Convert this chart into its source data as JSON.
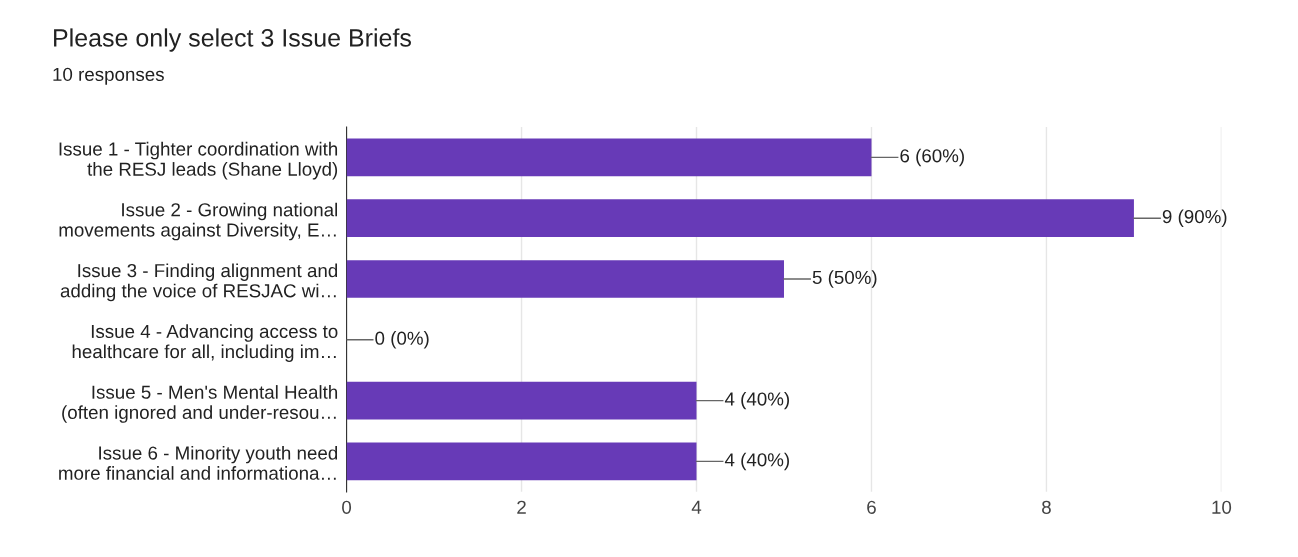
{
  "chart_data": {
    "type": "bar",
    "orientation": "horizontal",
    "title": "Please only select 3 Issue Briefs",
    "subtitle": "10 responses",
    "categories": [
      "Issue 1 - Tighter coordination with\nthe RESJ leads (Shane Lloyd)",
      "Issue 2 - Growing national\nmovements against Diversity, E…",
      "Issue 3 - Finding alignment and\nadding the voice of RESJAC wi…",
      "Issue 4 - Advancing access to\nhealthcare for all, including im…",
      "Issue 5 - Men's Mental Health\n(often ignored and under-resou…",
      "Issue 6 - Minority youth need\nmore financial and informationa…"
    ],
    "values": [
      6,
      9,
      5,
      0,
      4,
      4
    ],
    "value_labels": [
      "6 (60%)",
      "9 (90%)",
      "5 (50%)",
      "0 (0%)",
      "4 (40%)",
      "4 (40%)"
    ],
    "color": "#673ab7",
    "xlim": [
      0,
      10
    ],
    "xticks": [
      0,
      2,
      4,
      6,
      8,
      10
    ],
    "grid": "x"
  }
}
